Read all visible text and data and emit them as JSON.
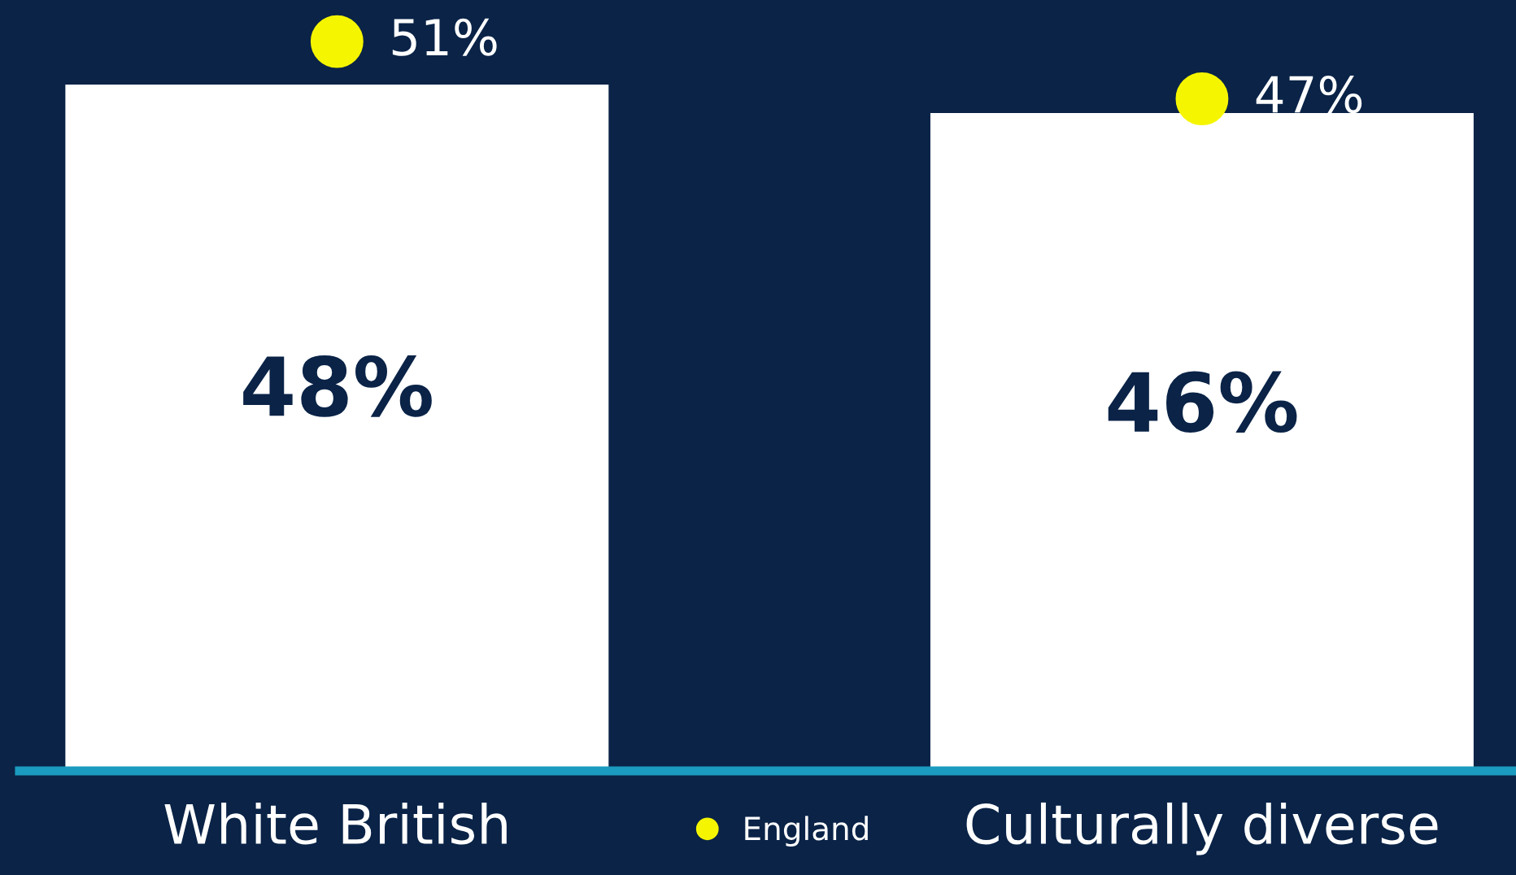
{
  "chart_data": {
    "type": "bar",
    "categories": [
      "White British",
      "Culturally diverse"
    ],
    "series": [
      {
        "color": "#ffffff",
        "values": [
          48,
          46
        ],
        "value_labels": [
          "48%",
          "46%"
        ]
      },
      {
        "type": "scatter",
        "name": "England",
        "color": "#f5f500",
        "x": [
          "White British",
          "Culturally diverse"
        ],
        "values": [
          51,
          47
        ],
        "value_labels": [
          "51%",
          "47%"
        ]
      }
    ],
    "legend": "bottom",
    "marker": "circle",
    "tick_labels": "x",
    "grid": false
  }
}
